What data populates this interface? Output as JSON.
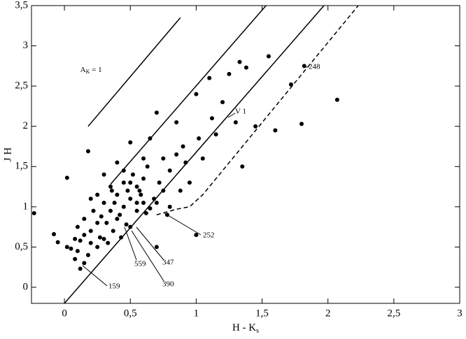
{
  "chart_data": {
    "type": "scatter",
    "x_label": {
      "main": "H - K",
      "sub": "s"
    },
    "y_label": "J  H",
    "xlim": [
      -0.25,
      3
    ],
    "ylim": [
      -0.2,
      3.5
    ],
    "xticks": [
      0,
      {
        "value": 0.5,
        "label": "0,5"
      },
      1,
      {
        "value": 1.5,
        "label": "1,5"
      },
      2,
      {
        "value": 2.5,
        "label": "2,5"
      },
      3
    ],
    "yticks": [
      0,
      {
        "value": 0.5,
        "label": "0,5"
      },
      1,
      {
        "value": 1.5,
        "label": "1,5"
      },
      2,
      {
        "value": 2.5,
        "label": "2,5"
      },
      3,
      {
        "value": 3.5,
        "label": "3,5"
      }
    ],
    "series": [
      {
        "type": "scatter",
        "color": "#000000",
        "x": [
          -0.23,
          -0.08,
          -0.05,
          0.02,
          0.05,
          0.08,
          0.1,
          0.12,
          0.15,
          0.18,
          0.2,
          0.22,
          0.25,
          0.27,
          0.3,
          0.32,
          0.35,
          0.37,
          0.4,
          0.42,
          0.45,
          0.47,
          0.5,
          0.52,
          0.55,
          0.57,
          0.6,
          0.62,
          0.65,
          0.68,
          0.7,
          0.72,
          0.75,
          0.78,
          0.8,
          0.85,
          0.88,
          0.9,
          0.95,
          1.0,
          1.0,
          1.05,
          1.1,
          1.15,
          1.2,
          1.25,
          1.3,
          1.33,
          1.35,
          1.45,
          1.55,
          1.6,
          1.8,
          1.82,
          2.07,
          1.72,
          1.38,
          0.02,
          0.1,
          0.15,
          0.2,
          0.25,
          0.3,
          0.35,
          0.4,
          0.45,
          0.5,
          0.55,
          0.6,
          0.65,
          0.7,
          0.75,
          0.8,
          0.3,
          0.4,
          0.5,
          0.6,
          0.2,
          0.45,
          0.12,
          0.28,
          0.38,
          0.58,
          0.92,
          1.02,
          1.12,
          0.85,
          0.63,
          0.43,
          0.33,
          0.18,
          0.08,
          0.5,
          0.7,
          0.55,
          0.48,
          0.25,
          0.15,
          0.36
        ],
        "values": [
          0.92,
          0.66,
          0.56,
          1.36,
          0.48,
          0.6,
          0.75,
          0.23,
          0.85,
          1.69,
          0.55,
          0.95,
          1.15,
          0.62,
          1.05,
          0.8,
          1.25,
          0.7,
          1.55,
          0.9,
          1.3,
          0.78,
          1.1,
          1.4,
          0.95,
          1.2,
          1.6,
          0.92,
          1.85,
          1.1,
          2.17,
          1.3,
          1.6,
          0.9,
          1.45,
          2.05,
          1.2,
          1.75,
          1.3,
          0.65,
          2.4,
          1.6,
          2.6,
          1.9,
          2.3,
          2.65,
          2.05,
          2.8,
          1.5,
          2.0,
          2.87,
          1.95,
          2.03,
          2.75,
          2.33,
          2.52,
          2.73,
          0.5,
          0.45,
          0.3,
          0.7,
          0.5,
          0.6,
          0.95,
          0.85,
          1.0,
          0.75,
          1.25,
          1.05,
          0.98,
          0.5,
          1.2,
          1.0,
          1.4,
          1.15,
          1.3,
          1.35,
          1.1,
          1.45,
          0.58,
          0.88,
          1.05,
          1.15,
          1.55,
          1.85,
          2.1,
          1.65,
          1.5,
          0.62,
          0.55,
          0.4,
          0.35,
          1.8,
          1.05,
          1.05,
          1.2,
          0.8,
          0.65,
          1.2
        ]
      },
      {
        "type": "line",
        "color": "#000000",
        "dash": false,
        "x": [
          0.18,
          0.88
        ],
        "values": [
          2.0,
          3.35
        ]
      },
      {
        "type": "line",
        "color": "#000000",
        "dash": false,
        "x": [
          0.35,
          1.53
        ],
        "values": [
          1.28,
          3.5
        ]
      },
      {
        "type": "line",
        "color": "#000000",
        "dash": false,
        "x": [
          0,
          1.97
        ],
        "values": [
          -0.2,
          3.5
        ]
      },
      {
        "type": "line",
        "color": "#000000",
        "dash": true,
        "x": [
          0.7,
          0.85,
          0.95,
          1.05,
          2.23
        ],
        "values": [
          0.9,
          0.97,
          1.0,
          1.15,
          3.5
        ]
      }
    ],
    "extinction_label": {
      "main": "A",
      "sub": "K",
      "rest": " = 1"
    },
    "annotations": [
      "248",
      "252",
      "559",
      "347",
      "390",
      "159",
      "V 1"
    ]
  }
}
